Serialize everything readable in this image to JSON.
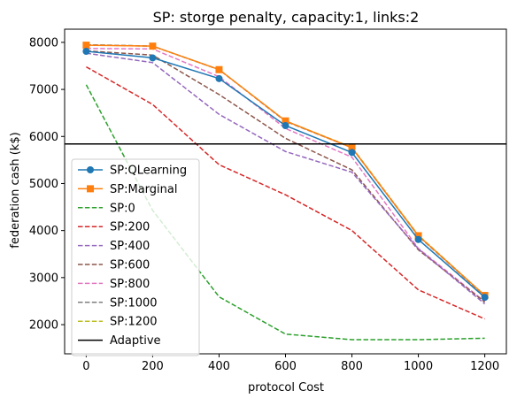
{
  "chart_data": {
    "type": "line",
    "title": "SP: storge penalty, capacity:1, links:2",
    "xlabel": "protocol Cost",
    "ylabel": "federation cash (k$)",
    "x": [
      0,
      200,
      400,
      600,
      800,
      1000,
      1200
    ],
    "xlim": [
      -65,
      1265
    ],
    "ylim": [
      1380,
      8280
    ],
    "xticks": [
      0,
      200,
      400,
      600,
      800,
      1000,
      1200
    ],
    "yticks": [
      2000,
      3000,
      4000,
      5000,
      6000,
      7000,
      8000
    ],
    "grid": false,
    "legend_position": "lower-left",
    "series": [
      {
        "name": "SP:1200",
        "color": "#bcbd22",
        "style": "dashed",
        "marker": "none",
        "values": [
          7950,
          7920,
          7420,
          6330,
          5770,
          3900,
          2620
        ]
      },
      {
        "name": "SP:1000",
        "color": "#7f7f7f",
        "style": "dashed",
        "marker": "none",
        "values": [
          7950,
          7920,
          7420,
          6320,
          5760,
          3880,
          2610
        ]
      },
      {
        "name": "SP:800",
        "color": "#e377c2",
        "style": "dashed",
        "marker": "none",
        "values": [
          7870,
          7860,
          7270,
          6170,
          5560,
          3620,
          2490
        ]
      },
      {
        "name": "SP:600",
        "color": "#8c564b",
        "style": "dashed",
        "marker": "none",
        "values": [
          7820,
          7730,
          6890,
          5960,
          5290,
          3590,
          2480
        ]
      },
      {
        "name": "SP:400",
        "color": "#9467bd",
        "style": "dashed",
        "marker": "none",
        "values": [
          7770,
          7570,
          6470,
          5680,
          5240,
          3610,
          2440
        ]
      },
      {
        "name": "SP:200",
        "color": "#d62728",
        "style": "dashed",
        "marker": "none",
        "values": [
          7480,
          6680,
          5400,
          4760,
          4000,
          2740,
          2120
        ]
      },
      {
        "name": "SP:0",
        "color": "#2ca02c",
        "style": "dashed",
        "marker": "none",
        "values": [
          7100,
          4430,
          2590,
          1800,
          1680,
          1680,
          1710
        ]
      },
      {
        "name": "SP:Marginal",
        "color": "#ff7f0e",
        "style": "solid",
        "marker": "square",
        "values": [
          7940,
          7920,
          7420,
          6330,
          5760,
          3890,
          2620
        ]
      },
      {
        "name": "SP:QLearning",
        "color": "#1f77b4",
        "style": "solid",
        "marker": "circle",
        "values": [
          7810,
          7670,
          7230,
          6230,
          5660,
          3810,
          2580
        ]
      }
    ],
    "reference_lines": [
      {
        "name": "Adaptive",
        "color": "#000000",
        "orientation": "horizontal",
        "value": 5840
      }
    ],
    "legend_order": [
      "SP:QLearning",
      "SP:Marginal",
      "SP:0",
      "SP:200",
      "SP:400",
      "SP:600",
      "SP:800",
      "SP:1000",
      "SP:1200",
      "Adaptive"
    ]
  }
}
